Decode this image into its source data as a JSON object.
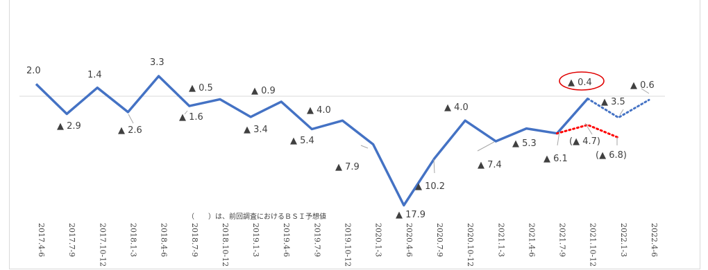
{
  "chart_data": {
    "type": "line",
    "categories": [
      "2017.4-6",
      "2017.7-9",
      "2017.10-12",
      "2018.1-3",
      "2018.4-6",
      "2018.7-9",
      "2018.10-12",
      "2019.1-3",
      "2019.4-6",
      "2019.7-9",
      "2019.10-12",
      "2020.1-3",
      "2020.4-6",
      "2020.7-9",
      "2020.10-12",
      "2021.1-3",
      "2021.4-6",
      "2021.7-9",
      "2021.10-12",
      "2022.1-3",
      "2022.4-6"
    ],
    "series": [
      {
        "values": [
          2.0,
          -2.9,
          1.4,
          -2.6,
          3.3,
          -1.6,
          -0.5,
          -3.4,
          -0.9,
          -5.4,
          -4.0,
          -7.9,
          -17.9,
          -10.2,
          -4.0,
          -7.4,
          -5.3,
          -6.1,
          -0.4,
          -3.5,
          -0.6
        ]
      },
      {
        "values": [
          null,
          null,
          null,
          null,
          null,
          null,
          null,
          null,
          null,
          null,
          null,
          null,
          null,
          null,
          null,
          null,
          null,
          -6.1,
          -4.7,
          -6.8,
          null
        ]
      }
    ],
    "data_labels": [
      "2.0",
      "▲ 2.9",
      "1.4",
      "▲ 2.6",
      "3.3",
      "▲ 1.6",
      "▲ 0.5",
      "▲ 3.4",
      "▲ 0.9",
      "▲ 5.4",
      "▲ 4.0",
      "▲ 7.9",
      "▲ 17.9",
      "▲ 10.2",
      "▲ 4.0",
      "▲ 7.4",
      "▲ 5.3",
      "▲ 6.1",
      "▲ 0.4",
      "▲ 3.5",
      "▲ 0.6"
    ],
    "previous_labels": [
      "(▲ 4.7)",
      "(▲ 6.8)"
    ],
    "note": "（　　）は、前回調査におけるＢＳＩ予想値",
    "colors": {
      "actual": "#4472c4",
      "forecast": "#4472c4",
      "previous": "#ff0000",
      "circle": "#e00000",
      "axis": "#d9d9d9",
      "leader": "#a6a6a6",
      "text": "#404040"
    }
  }
}
